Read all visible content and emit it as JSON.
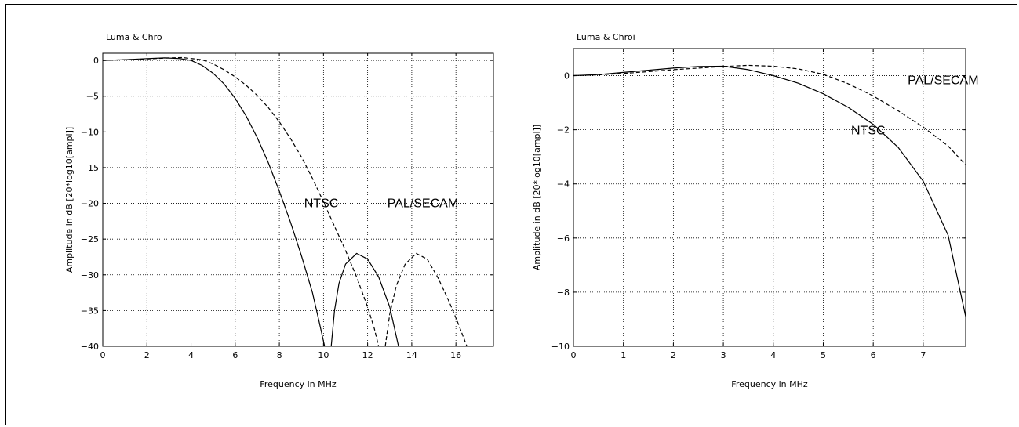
{
  "chart_data": [
    {
      "type": "line",
      "title": "Luma & Chro",
      "xlabel": "Frequency in MHz",
      "ylabel": "Amplitude in dB [20*log10[ampl]]",
      "xlim": [
        0,
        17.7
      ],
      "ylim": [
        -40,
        1
      ],
      "xticks": [
        0,
        2,
        4,
        6,
        8,
        10,
        12,
        14,
        16
      ],
      "yticks": [
        0,
        -5,
        -10,
        -15,
        -20,
        -25,
        -30,
        -35,
        -40
      ],
      "xtick_labels": [
        "0",
        "2",
        "4",
        "6",
        "8",
        "10",
        "12",
        "14",
        "16"
      ],
      "ytick_labels": [
        "0",
        "−5",
        "−10",
        "−15",
        "−20",
        "−25",
        "−30",
        "−35",
        "−40"
      ],
      "grid": true,
      "annotations": [
        {
          "text": "NTSC",
          "x": 9.9,
          "y": -19.9
        },
        {
          "text": "PAL/SECAM",
          "x": 14.5,
          "y": -19.9
        }
      ],
      "series": [
        {
          "name": "NTSC",
          "style": "solid",
          "segments": [
            [
              [
                0,
                0
              ],
              [
                1,
                0.1
              ],
              [
                2,
                0.25
              ],
              [
                2.8,
                0.35
              ],
              [
                3.5,
                0.25
              ],
              [
                4,
                0.0
              ],
              [
                4.5,
                -0.7
              ],
              [
                5,
                -1.8
              ],
              [
                5.5,
                -3.3
              ],
              [
                6,
                -5.3
              ],
              [
                6.5,
                -7.8
              ],
              [
                7,
                -10.8
              ],
              [
                7.5,
                -14.3
              ],
              [
                8,
                -18.3
              ],
              [
                8.5,
                -22.6
              ],
              [
                9,
                -27.3
              ],
              [
                9.5,
                -32.5
              ],
              [
                9.8,
                -36.5
              ],
              [
                10.05,
                -40
              ]
            ],
            [
              [
                10.35,
                -40
              ],
              [
                10.5,
                -35
              ],
              [
                10.7,
                -31.2
              ],
              [
                11,
                -28.5
              ],
              [
                11.5,
                -27
              ],
              [
                12,
                -27.8
              ],
              [
                12.5,
                -30.3
              ],
              [
                13,
                -34.5
              ],
              [
                13.4,
                -40
              ]
            ]
          ]
        },
        {
          "name": "PAL/SECAM",
          "style": "dashed",
          "segments": [
            [
              [
                0,
                0
              ],
              [
                1,
                0.1
              ],
              [
                2,
                0.2
              ],
              [
                3,
                0.35
              ],
              [
                3.6,
                0.4
              ],
              [
                4.5,
                0.1
              ],
              [
                5,
                -0.5
              ],
              [
                5.5,
                -1.3
              ],
              [
                6,
                -2.3
              ],
              [
                6.5,
                -3.5
              ],
              [
                7,
                -4.9
              ],
              [
                7.5,
                -6.6
              ],
              [
                8,
                -8.6
              ],
              [
                8.5,
                -10.9
              ],
              [
                9,
                -13.5
              ],
              [
                9.5,
                -16.5
              ],
              [
                10,
                -19.8
              ],
              [
                10.5,
                -23.2
              ],
              [
                11,
                -26.6
              ],
              [
                11.5,
                -30.3
              ],
              [
                12,
                -34.5
              ],
              [
                12.3,
                -37.5
              ],
              [
                12.5,
                -40
              ]
            ],
            [
              [
                12.8,
                -40
              ],
              [
                13,
                -35.5
              ],
              [
                13.3,
                -31.5
              ],
              [
                13.7,
                -28.5
              ],
              [
                14.2,
                -27
              ],
              [
                14.7,
                -27.8
              ],
              [
                15.2,
                -30.5
              ],
              [
                15.7,
                -33.8
              ],
              [
                16.1,
                -36.8
              ],
              [
                16.5,
                -40
              ]
            ]
          ]
        }
      ]
    },
    {
      "type": "line",
      "title": "Luma & Chroi",
      "xlabel": "Frequency in MHz",
      "ylabel": "Amplitude in dB [20*log10[ampl]]",
      "xlim": [
        0,
        7.85
      ],
      "ylim": [
        -10,
        1
      ],
      "xticks": [
        0,
        1,
        2,
        3,
        4,
        5,
        6,
        7
      ],
      "yticks": [
        0,
        -2,
        -4,
        -6,
        -8,
        -10
      ],
      "xtick_labels": [
        "0",
        "1",
        "2",
        "3",
        "4",
        "5",
        "6",
        "7"
      ],
      "ytick_labels": [
        "0",
        "−2",
        "−4",
        "−6",
        "−8",
        "−10"
      ],
      "grid": true,
      "annotations": [
        {
          "text": "NTSC",
          "x": 5.9,
          "y": -2.0
        },
        {
          "text": "PAL/SECAM",
          "x": 7.4,
          "y": -0.15
        }
      ],
      "series": [
        {
          "name": "NTSC",
          "style": "solid",
          "segments": [
            [
              [
                0,
                0
              ],
              [
                0.5,
                0.04
              ],
              [
                1,
                0.12
              ],
              [
                1.5,
                0.2
              ],
              [
                2,
                0.28
              ],
              [
                2.5,
                0.34
              ],
              [
                3,
                0.35
              ],
              [
                3.5,
                0.22
              ],
              [
                4,
                0.0
              ],
              [
                4.5,
                -0.28
              ],
              [
                5,
                -0.67
              ],
              [
                5.5,
                -1.17
              ],
              [
                6,
                -1.8
              ],
              [
                6.5,
                -2.65
              ],
              [
                7,
                -3.9
              ],
              [
                7.5,
                -5.9
              ],
              [
                7.85,
                -8.9
              ]
            ]
          ]
        },
        {
          "name": "PAL/SECAM",
          "style": "dashed",
          "segments": [
            [
              [
                0,
                0
              ],
              [
                0.5,
                0.03
              ],
              [
                1,
                0.08
              ],
              [
                1.5,
                0.15
              ],
              [
                2,
                0.22
              ],
              [
                2.5,
                0.28
              ],
              [
                3,
                0.34
              ],
              [
                3.5,
                0.38
              ],
              [
                4,
                0.35
              ],
              [
                4.5,
                0.25
              ],
              [
                5,
                0.05
              ],
              [
                5.5,
                -0.3
              ],
              [
                6,
                -0.75
              ],
              [
                6.5,
                -1.3
              ],
              [
                7,
                -1.9
              ],
              [
                7.5,
                -2.6
              ],
              [
                7.85,
                -3.3
              ]
            ]
          ]
        }
      ]
    }
  ]
}
